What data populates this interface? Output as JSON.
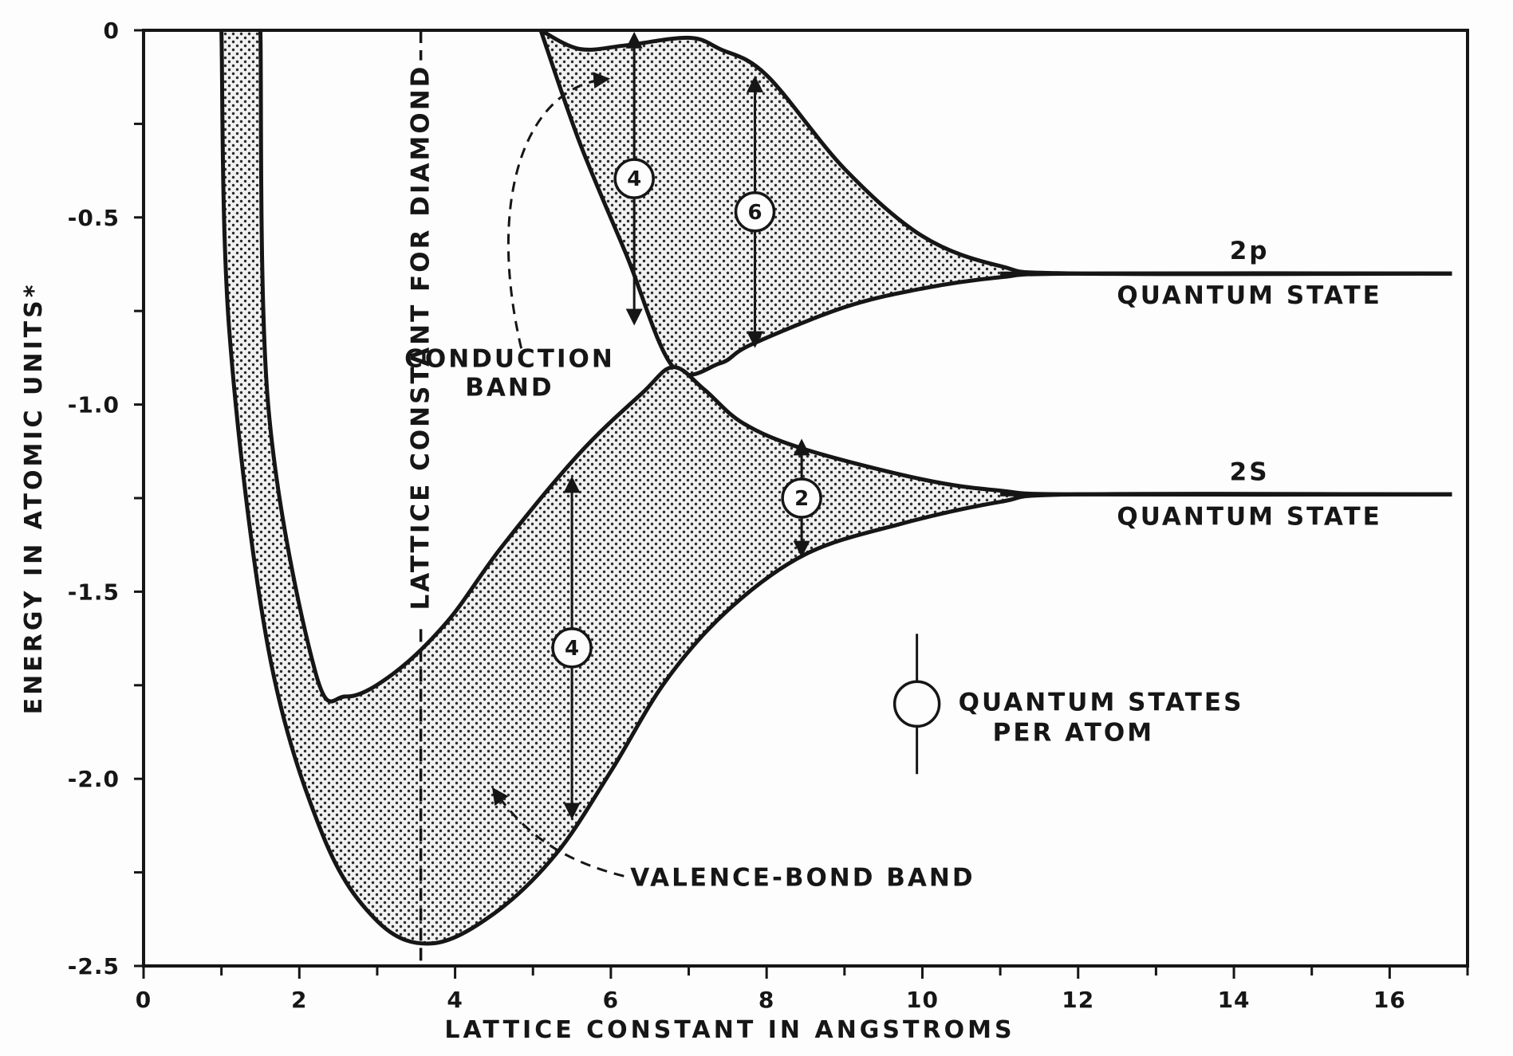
{
  "chart_data": {
    "type": "area",
    "title": "",
    "xlabel": "LATTICE CONSTANT IN ANGSTROMS",
    "ylabel": "ENERGY IN ATOMIC UNITS*",
    "xlim": [
      0,
      17
    ],
    "ylim": [
      -2.5,
      0
    ],
    "x_ticks": [
      0,
      2,
      4,
      6,
      8,
      10,
      12,
      14,
      16
    ],
    "y_ticks": [
      0,
      -0.5,
      -1.0,
      -1.5,
      -2.0,
      -2.5
    ],
    "x_tick_labels": [
      "0",
      "2",
      "4",
      "6",
      "8",
      "10",
      "12",
      "14",
      "16"
    ],
    "y_tick_labels": [
      "0",
      "-0.5",
      "-1.0",
      "-1.5",
      "-2.0",
      "-2.5"
    ],
    "grid": false,
    "series": [
      {
        "name": "CONDUCTION BAND",
        "upper_boundary": [
          [
            5.1,
            0
          ],
          [
            5.6,
            -0.05
          ],
          [
            6.2,
            -0.04
          ],
          [
            7.0,
            -0.02
          ],
          [
            7.4,
            -0.05
          ],
          [
            8.0,
            -0.12
          ],
          [
            9.0,
            -0.37
          ],
          [
            10.0,
            -0.55
          ],
          [
            11.0,
            -0.63
          ],
          [
            12.0,
            -0.65
          ],
          [
            16.8,
            -0.65
          ]
        ],
        "lower_boundary": [
          [
            5.1,
            0
          ],
          [
            5.6,
            -0.3
          ],
          [
            6.2,
            -0.6
          ],
          [
            6.8,
            -0.9
          ],
          [
            7.4,
            -0.89
          ],
          [
            7.8,
            -0.84
          ],
          [
            9.0,
            -0.74
          ],
          [
            10.0,
            -0.69
          ],
          [
            11.0,
            -0.66
          ],
          [
            12.0,
            -0.65
          ],
          [
            16.8,
            -0.65
          ]
        ]
      },
      {
        "name": "VALENCE-BOND BAND",
        "upper_boundary": [
          [
            1.5,
            0
          ],
          [
            1.6,
            -1.0
          ],
          [
            2.2,
            -1.71
          ],
          [
            2.6,
            -1.78
          ],
          [
            3.2,
            -1.72
          ],
          [
            3.9,
            -1.58
          ],
          [
            4.6,
            -1.38
          ],
          [
            5.6,
            -1.13
          ],
          [
            6.4,
            -0.97
          ],
          [
            6.8,
            -0.9
          ],
          [
            7.2,
            -0.96
          ],
          [
            7.7,
            -1.05
          ],
          [
            8.5,
            -1.12
          ],
          [
            10.0,
            -1.2
          ],
          [
            11.0,
            -1.23
          ],
          [
            12.0,
            -1.24
          ],
          [
            16.8,
            -1.24
          ]
        ],
        "lower_boundary": [
          [
            1.0,
            0
          ],
          [
            1.1,
            -0.8
          ],
          [
            1.6,
            -1.65
          ],
          [
            2.3,
            -2.15
          ],
          [
            3.0,
            -2.38
          ],
          [
            3.7,
            -2.44
          ],
          [
            4.5,
            -2.36
          ],
          [
            5.3,
            -2.2
          ],
          [
            6.0,
            -1.98
          ],
          [
            6.7,
            -1.74
          ],
          [
            7.5,
            -1.55
          ],
          [
            8.5,
            -1.4
          ],
          [
            9.7,
            -1.32
          ],
          [
            11.0,
            -1.26
          ],
          [
            12.0,
            -1.24
          ],
          [
            16.8,
            -1.24
          ]
        ]
      }
    ],
    "levels": [
      {
        "name": "2p",
        "caption": "QUANTUM STATE",
        "y": -0.65
      },
      {
        "name": "2S",
        "caption": "QUANTUM STATE",
        "y": -1.24
      }
    ],
    "reference_line": {
      "label": "LATTICE CONSTANT FOR DIAMOND",
      "x": 3.56
    },
    "band_widths": [
      {
        "label": "4",
        "x": 6.3,
        "y_top": 0,
        "y_bottom": -0.78
      },
      {
        "label": "6",
        "x": 7.85,
        "y_top": -0.13,
        "y_bottom": -0.84
      },
      {
        "label": "2",
        "x": 8.45,
        "y_top": -1.1,
        "y_bottom": -1.4
      },
      {
        "label": "4",
        "x": 5.5,
        "y_top": -1.2,
        "y_bottom": -2.1
      }
    ],
    "annotations": [
      {
        "lines": [
          "CONDUCTION",
          "BAND"
        ]
      },
      {
        "lines": [
          "VALENCE-BOND BAND"
        ]
      }
    ],
    "legend": {
      "symbol": "circle",
      "lines": [
        "QUANTUM STATES",
        "PER ATOM"
      ],
      "position": "right"
    }
  }
}
